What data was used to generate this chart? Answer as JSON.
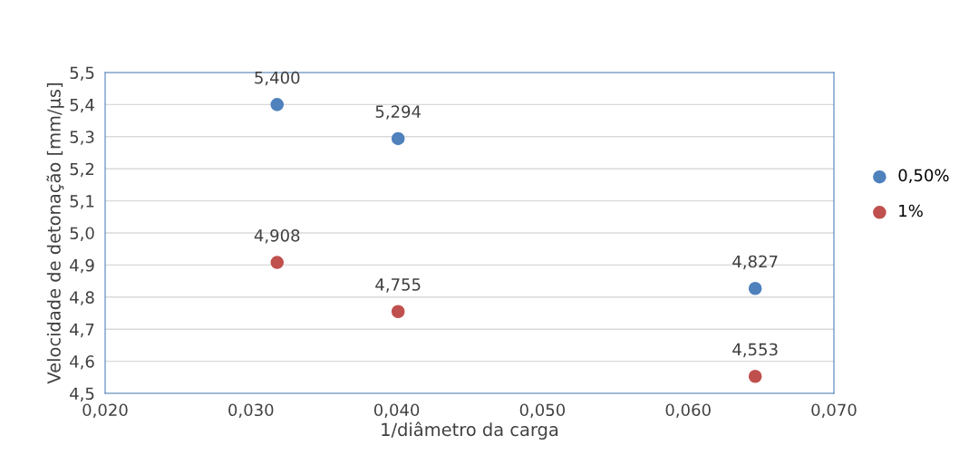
{
  "chart_data": {
    "type": "scatter",
    "xlabel": "1/diâmetro da carga",
    "ylabel": "Velocidade de detonação [mm/µs]",
    "xlim": [
      0.02,
      0.07
    ],
    "xticks": [
      {
        "value": 0.02,
        "label": "0,020"
      },
      {
        "value": 0.03,
        "label": "0,030"
      },
      {
        "value": 0.04,
        "label": "0,040"
      },
      {
        "value": 0.05,
        "label": "0,050"
      },
      {
        "value": 0.06,
        "label": "0,060"
      },
      {
        "value": 0.07,
        "label": "0,070"
      }
    ],
    "ylim": [
      4.5,
      5.5
    ],
    "yticks": [
      {
        "value": 4.5,
        "label": "4,5"
      },
      {
        "value": 4.6,
        "label": "4,6"
      },
      {
        "value": 4.7,
        "label": "4,7"
      },
      {
        "value": 4.8,
        "label": "4,8"
      },
      {
        "value": 4.9,
        "label": "4,9"
      },
      {
        "value": 5.0,
        "label": "5,0"
      },
      {
        "value": 5.1,
        "label": "5,1"
      },
      {
        "value": 5.2,
        "label": "5,2"
      },
      {
        "value": 5.3,
        "label": "5,3"
      },
      {
        "value": 5.4,
        "label": "5,4"
      },
      {
        "value": 5.5,
        "label": "5,5"
      }
    ],
    "grid": "y",
    "legend": "right",
    "marker": "circle",
    "series": [
      {
        "name": "0,50%",
        "color": "#4f81bd",
        "x": [
          0.0318,
          0.0401,
          0.0646
        ],
        "values": [
          5.4,
          5.294,
          4.827
        ],
        "value_labels": [
          "5,400",
          "5,294",
          "4,827"
        ]
      },
      {
        "name": "1%",
        "color": "#c0504d",
        "x": [
          0.0318,
          0.0401,
          0.0646
        ],
        "values": [
          4.908,
          4.755,
          4.553
        ],
        "value_labels": [
          "4,908",
          "4,755",
          "4,553"
        ]
      }
    ]
  }
}
